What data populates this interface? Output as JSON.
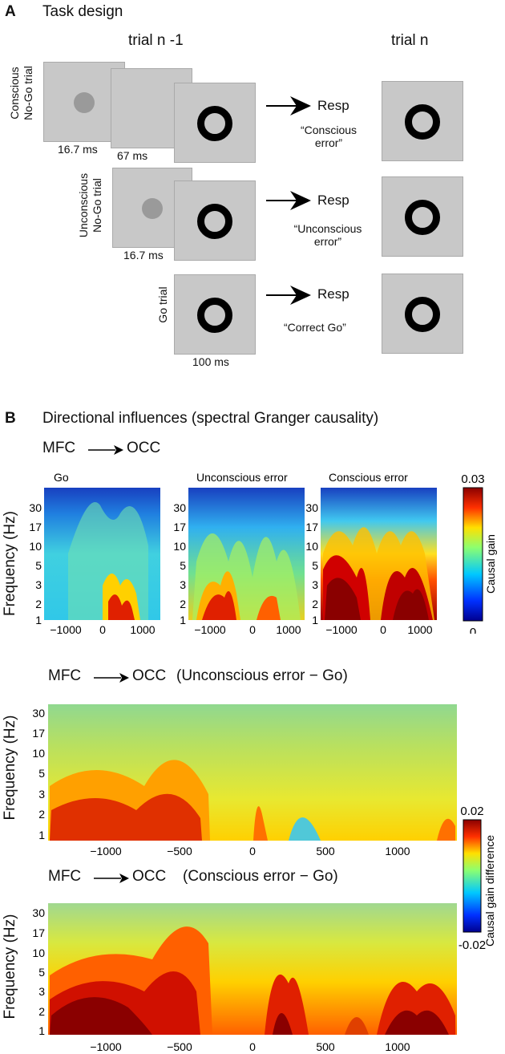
{
  "panelA": {
    "letter": "A",
    "title": "Task design",
    "col_prev": "trial n -1",
    "col_next": "trial n",
    "rows": [
      {
        "label_l1": "Conscious",
        "label_l2": "No-Go trial",
        "t1": "16.7 ms",
        "t2": "67 ms",
        "resp": "Resp",
        "q1": "“Conscious",
        "q2": "error”"
      },
      {
        "label_l1": "Unconscious",
        "label_l2": "No-Go trial",
        "t1": "16.7 ms",
        "resp": "Resp",
        "q1": "“Unconscious",
        "q2": "error”"
      },
      {
        "label_l1": "Go trial",
        "t1": "100 ms",
        "resp": "Resp",
        "q1": "“Correct Go”"
      }
    ]
  },
  "panelB": {
    "letter": "B",
    "title": "Directional influences (spectral Granger causality)",
    "row1_src": "MFC",
    "row1_dst": "OCC",
    "panel_titles": [
      "Go",
      "Unconscious error",
      "Conscious error"
    ],
    "ylabel": "Frequency (Hz)",
    "yticks": [
      "30",
      "17",
      "10",
      "5",
      "3",
      "2",
      "1"
    ],
    "xticks_small": [
      "−1000",
      "0",
      "1000"
    ],
    "colorbar1": {
      "label": "Causal gain",
      "max": "0.03",
      "min": "0"
    },
    "row2_src": "MFC",
    "row2_dst": "OCC",
    "row2_cond": "(Unconscious error − Go)",
    "row3_src": "MFC",
    "row3_dst": "OCC",
    "row3_cond": "(Conscious error − Go)",
    "xticks_large": [
      "−1000",
      "−500",
      "0",
      "500",
      "1000"
    ],
    "colorbar2": {
      "label": "Causal gain difference",
      "max": "0.02",
      "min": "-0.02"
    }
  },
  "chart_data": [
    {
      "type": "heatmap",
      "title": "Go",
      "xlabel": "",
      "ylabel": "Frequency (Hz)",
      "x": [
        -1000,
        0,
        1000
      ],
      "yticks": [
        1,
        2,
        3,
        5,
        10,
        17,
        30
      ],
      "xlim": [
        -1300,
        1300
      ],
      "clim": [
        0,
        0.03
      ]
    },
    {
      "type": "heatmap",
      "title": "Unconscious error",
      "xlabel": "",
      "ylabel": "",
      "x": [
        -1000,
        0,
        1000
      ],
      "yticks": [
        1,
        2,
        3,
        5,
        10,
        17,
        30
      ],
      "xlim": [
        -1300,
        1300
      ],
      "clim": [
        0,
        0.03
      ]
    },
    {
      "type": "heatmap",
      "title": "Conscious error",
      "xlabel": "",
      "ylabel": "",
      "x": [
        -1000,
        0,
        1000
      ],
      "yticks": [
        1,
        2,
        3,
        5,
        10,
        17,
        30
      ],
      "xlim": [
        -1300,
        1300
      ],
      "clim": [
        0,
        0.03
      ]
    },
    {
      "type": "heatmap",
      "title": "MFC → OCC (Unconscious error − Go)",
      "ylabel": "Frequency (Hz)",
      "x": [
        -1000,
        -500,
        0,
        500,
        1000
      ],
      "yticks": [
        1,
        2,
        3,
        5,
        10,
        17,
        30
      ],
      "xlim": [
        -1400,
        1400
      ],
      "clim": [
        -0.02,
        0.02
      ]
    },
    {
      "type": "heatmap",
      "title": "MFC → OCC (Conscious error − Go)",
      "ylabel": "Frequency (Hz)",
      "x": [
        -1000,
        -500,
        0,
        500,
        1000
      ],
      "yticks": [
        1,
        2,
        3,
        5,
        10,
        17,
        30
      ],
      "xlim": [
        -1400,
        1400
      ],
      "clim": [
        -0.02,
        0.02
      ]
    }
  ]
}
